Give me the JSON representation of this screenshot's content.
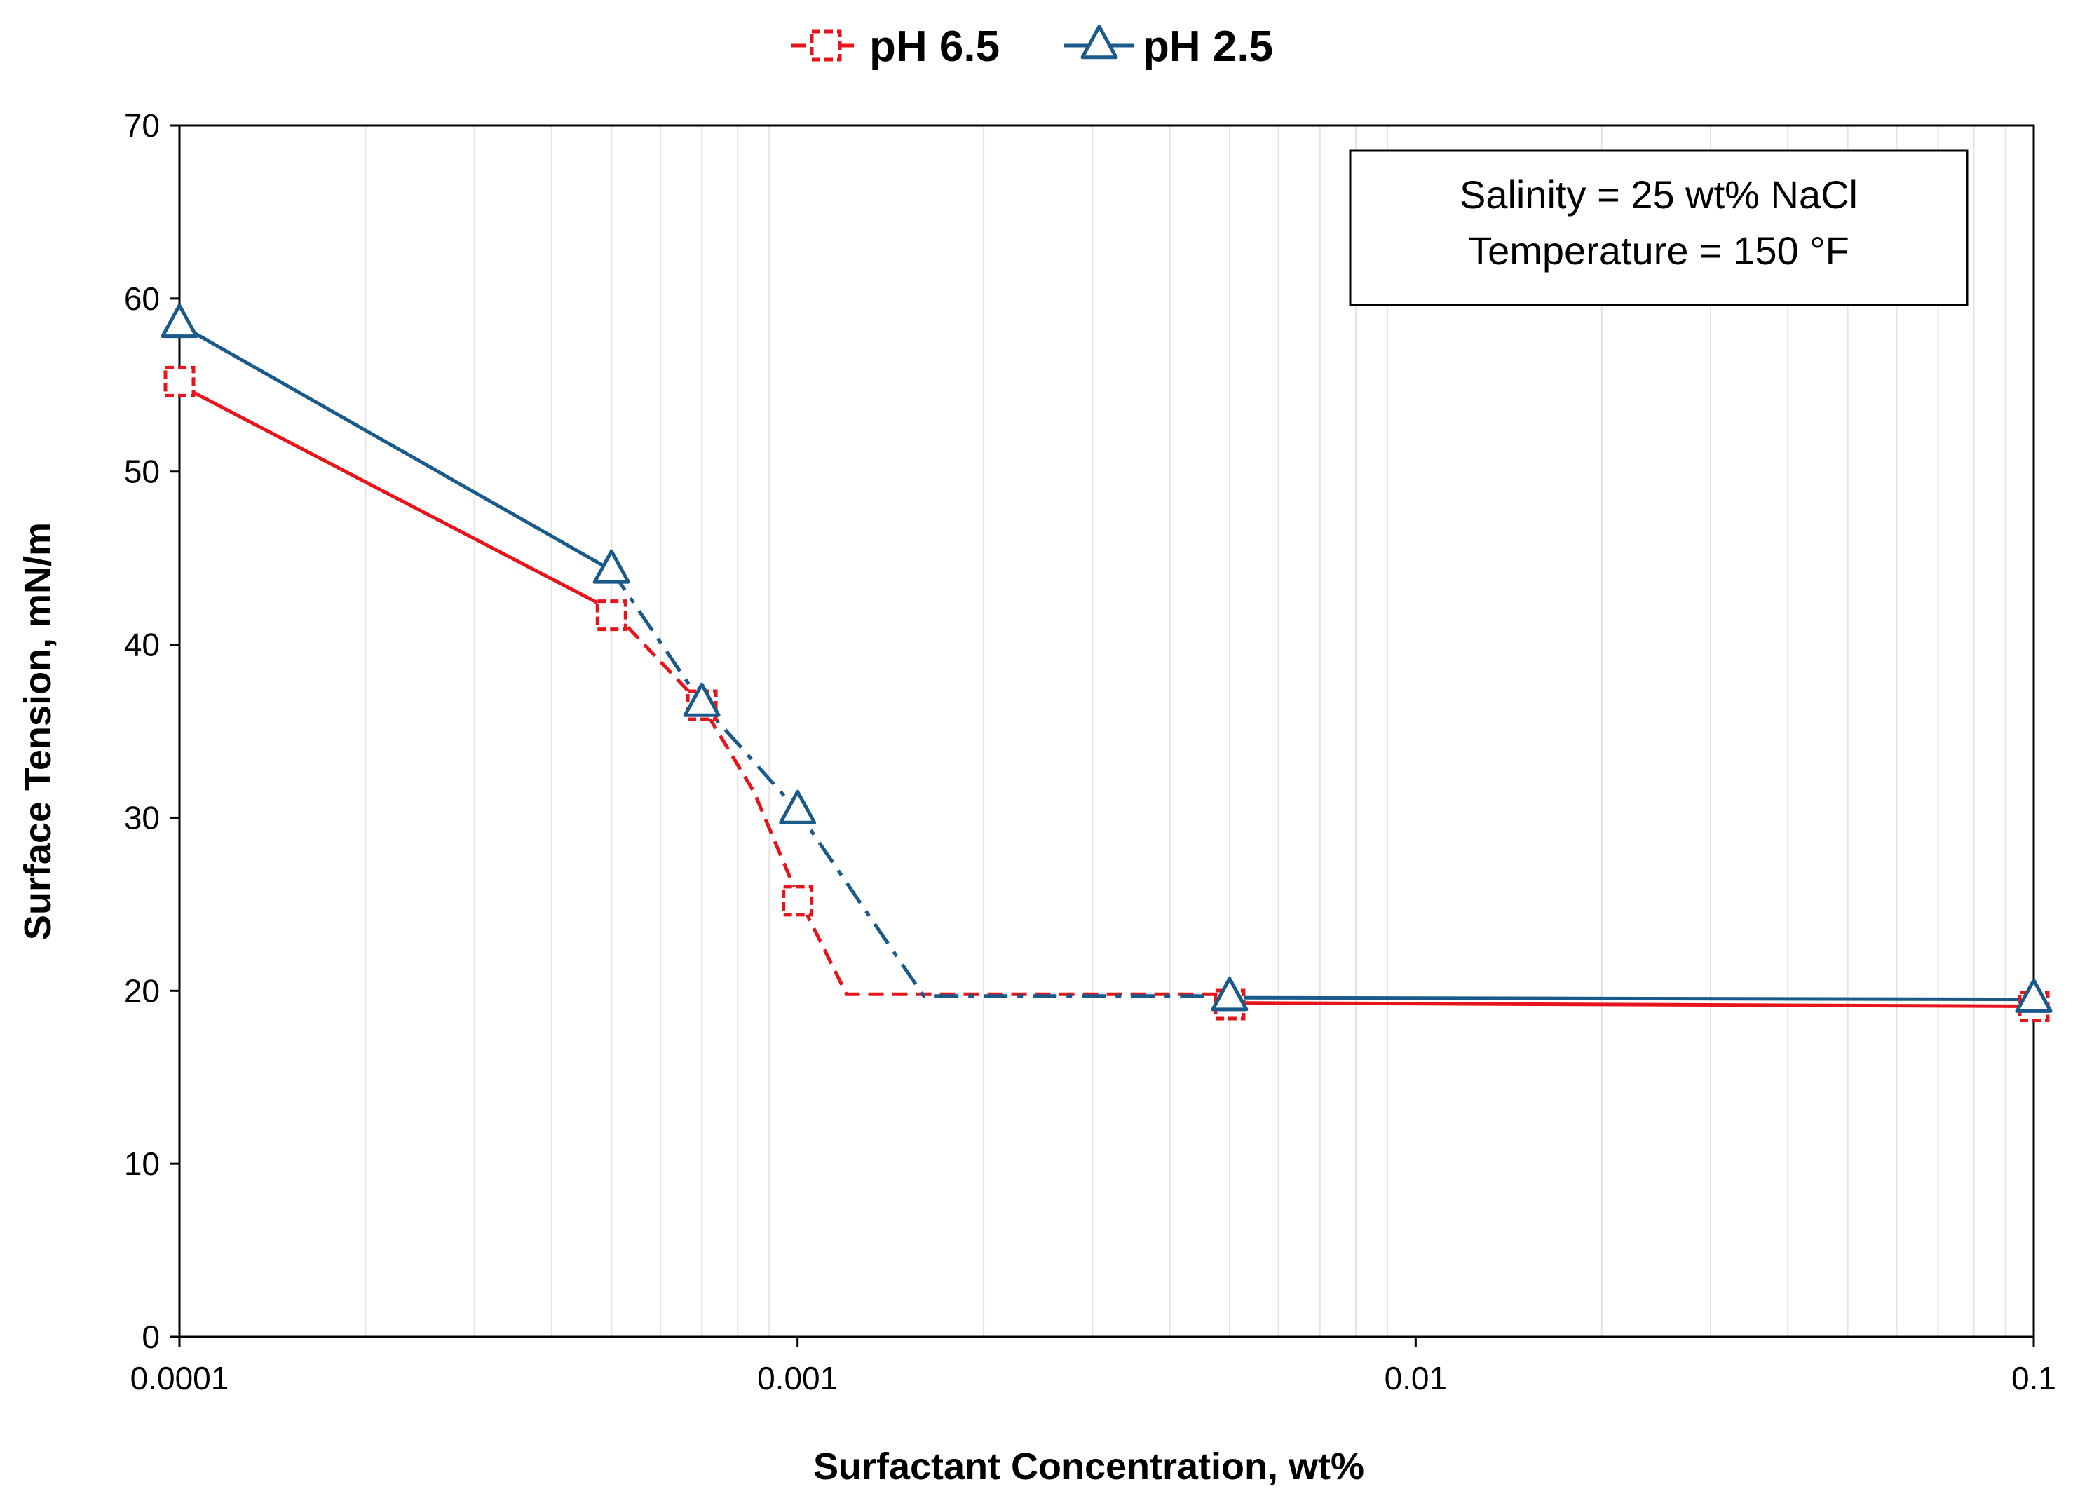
{
  "chart_data": {
    "type": "line",
    "title": "",
    "xlabel": "Surfactant Concentration, wt%",
    "ylabel": "Surface Tension, mN/m",
    "xscale": "log",
    "xlim": [
      0.0001,
      0.1
    ],
    "ylim": [
      0,
      70
    ],
    "x_ticks": [
      0.0001,
      0.001,
      0.01,
      0.1
    ],
    "x_tick_labels": [
      "0.0001",
      "0.001",
      "0.01",
      "0.1"
    ],
    "y_ticks": [
      0,
      10,
      20,
      30,
      40,
      50,
      60,
      70
    ],
    "y_tick_labels": [
      "0",
      "10",
      "20",
      "30",
      "40",
      "50",
      "60",
      "70"
    ],
    "grid": "x-minor-vertical",
    "legend_position": "top-center",
    "series": [
      {
        "name": "pH 6.5",
        "color": "#e8141b",
        "marker": "square-dashed",
        "points": [
          {
            "x": 0.0001,
            "y": 55.2
          },
          {
            "x": 0.0005,
            "y": 41.7
          },
          {
            "x": 0.0007,
            "y": 36.5
          },
          {
            "x": 0.001,
            "y": 25.2
          },
          {
            "x": 0.005,
            "y": 19.2
          },
          {
            "x": 0.1,
            "y": 19.1
          }
        ],
        "trend": {
          "solid": [
            [
              0.0001,
              55.0
            ],
            [
              0.0005,
              42.0
            ]
          ],
          "dashed": [
            [
              0.0005,
              42.0
            ],
            [
              0.0007,
              36.5
            ],
            [
              0.00085,
              31.5
            ],
            [
              0.001,
              25.5
            ],
            [
              0.0012,
              19.8
            ],
            [
              0.005,
              19.8
            ]
          ],
          "solid_plateau": [
            [
              0.005,
              19.3
            ],
            [
              0.1,
              19.1
            ]
          ]
        }
      },
      {
        "name": "pH 2.5",
        "color": "#1a5a8a",
        "marker": "triangle",
        "points": [
          {
            "x": 0.0001,
            "y": 58.5
          },
          {
            "x": 0.0005,
            "y": 44.3
          },
          {
            "x": 0.0007,
            "y": 36.6
          },
          {
            "x": 0.001,
            "y": 30.4
          },
          {
            "x": 0.005,
            "y": 19.6
          },
          {
            "x": 0.1,
            "y": 19.5
          }
        ],
        "trend": {
          "solid": [
            [
              0.0001,
              58.5
            ],
            [
              0.0005,
              44.3
            ]
          ],
          "dashdot": [
            [
              0.0005,
              44.3
            ],
            [
              0.0007,
              36.6
            ],
            [
              0.001,
              30.4
            ],
            [
              0.0016,
              19.7
            ],
            [
              0.005,
              19.7
            ]
          ],
          "solid_plateau": [
            [
              0.005,
              19.6
            ],
            [
              0.1,
              19.5
            ]
          ]
        }
      }
    ],
    "annotation": {
      "lines": [
        "Salinity = 25 wt% NaCl",
        "Temperature = 150 °F"
      ]
    }
  }
}
